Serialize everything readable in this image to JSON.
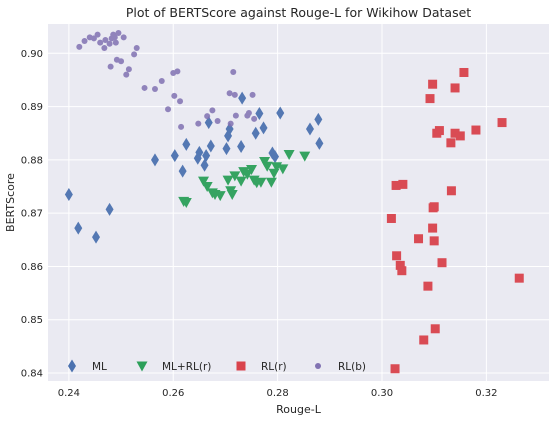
{
  "chart_data": {
    "type": "scatter",
    "title": "Plot of BERTScore against Rouge-L for Wikihow Dataset",
    "xlabel": "Rouge-L",
    "ylabel": "BERTScore",
    "xlim": [
      0.236,
      0.332
    ],
    "ylim": [
      0.8385,
      0.9055
    ],
    "xticks": [
      0.24,
      0.26,
      0.28,
      0.3,
      0.32
    ],
    "xtick_labels": [
      "0.24",
      "0.26",
      "0.28",
      "0.30",
      "0.32"
    ],
    "yticks": [
      0.84,
      0.85,
      0.86,
      0.87,
      0.88,
      0.89,
      0.9
    ],
    "ytick_labels": [
      "0.84",
      "0.85",
      "0.86",
      "0.87",
      "0.88",
      "0.89",
      "0.90"
    ],
    "grid": true,
    "legend_position": "bottom-left",
    "series": [
      {
        "name": "ML",
        "marker": "diamond",
        "color": "#4c72b0",
        "points": [
          [
            0.24,
            0.8735
          ],
          [
            0.2418,
            0.8672
          ],
          [
            0.2452,
            0.8655
          ],
          [
            0.2478,
            0.8707
          ],
          [
            0.2565,
            0.88
          ],
          [
            0.2603,
            0.8808
          ],
          [
            0.2618,
            0.8779
          ],
          [
            0.2625,
            0.8829
          ],
          [
            0.2647,
            0.8803
          ],
          [
            0.265,
            0.8814
          ],
          [
            0.266,
            0.879
          ],
          [
            0.2663,
            0.8808
          ],
          [
            0.2668,
            0.887
          ],
          [
            0.2672,
            0.8826
          ],
          [
            0.2702,
            0.8821
          ],
          [
            0.2705,
            0.8845
          ],
          [
            0.2708,
            0.8858
          ],
          [
            0.273,
            0.8825
          ],
          [
            0.2732,
            0.8916
          ],
          [
            0.2758,
            0.885
          ],
          [
            0.2765,
            0.8887
          ],
          [
            0.2773,
            0.886
          ],
          [
            0.279,
            0.8813
          ],
          [
            0.2795,
            0.8806
          ],
          [
            0.2805,
            0.8888
          ],
          [
            0.2862,
            0.8858
          ],
          [
            0.2878,
            0.8876
          ],
          [
            0.288,
            0.8831
          ]
        ]
      },
      {
        "name": "ML+RL(r)",
        "marker": "triangle-down",
        "color": "#2ca05a",
        "points": [
          [
            0.262,
            0.8722
          ],
          [
            0.2625,
            0.872
          ],
          [
            0.2658,
            0.876
          ],
          [
            0.2665,
            0.875
          ],
          [
            0.2675,
            0.8738
          ],
          [
            0.268,
            0.8735
          ],
          [
            0.269,
            0.8733
          ],
          [
            0.2705,
            0.8762
          ],
          [
            0.271,
            0.8742
          ],
          [
            0.2713,
            0.8735
          ],
          [
            0.2718,
            0.877
          ],
          [
            0.273,
            0.876
          ],
          [
            0.2735,
            0.8778
          ],
          [
            0.2742,
            0.8773
          ],
          [
            0.275,
            0.8782
          ],
          [
            0.2755,
            0.8762
          ],
          [
            0.276,
            0.8757
          ],
          [
            0.2768,
            0.8758
          ],
          [
            0.2775,
            0.8797
          ],
          [
            0.278,
            0.8788
          ],
          [
            0.2788,
            0.8758
          ],
          [
            0.2793,
            0.8775
          ],
          [
            0.2798,
            0.8787
          ],
          [
            0.281,
            0.8783
          ],
          [
            0.2822,
            0.881
          ],
          [
            0.2852,
            0.8807
          ]
        ]
      },
      {
        "name": "RL(r)",
        "marker": "square",
        "color": "#d9434c",
        "points": [
          [
            0.3018,
            0.869
          ],
          [
            0.3025,
            0.8408
          ],
          [
            0.3027,
            0.8752
          ],
          [
            0.3028,
            0.862
          ],
          [
            0.3035,
            0.8602
          ],
          [
            0.3038,
            0.8592
          ],
          [
            0.304,
            0.8754
          ],
          [
            0.307,
            0.8652
          ],
          [
            0.308,
            0.8462
          ],
          [
            0.3088,
            0.8563
          ],
          [
            0.3092,
            0.8915
          ],
          [
            0.3097,
            0.8942
          ],
          [
            0.3097,
            0.8672
          ],
          [
            0.3098,
            0.871
          ],
          [
            0.31,
            0.8712
          ],
          [
            0.31,
            0.8648
          ],
          [
            0.3102,
            0.8483
          ],
          [
            0.3105,
            0.885
          ],
          [
            0.311,
            0.8855
          ],
          [
            0.3115,
            0.8607
          ],
          [
            0.3132,
            0.8832
          ],
          [
            0.3133,
            0.8742
          ],
          [
            0.314,
            0.8935
          ],
          [
            0.314,
            0.885
          ],
          [
            0.315,
            0.8845
          ],
          [
            0.3157,
            0.8964
          ],
          [
            0.318,
            0.8856
          ],
          [
            0.323,
            0.887
          ],
          [
            0.3263,
            0.8578
          ]
        ]
      },
      {
        "name": "RL(b)",
        "marker": "circle",
        "color": "#8172b2",
        "points": [
          [
            0.242,
            0.9012
          ],
          [
            0.243,
            0.9023
          ],
          [
            0.244,
            0.903
          ],
          [
            0.2448,
            0.9028
          ],
          [
            0.2455,
            0.9035
          ],
          [
            0.246,
            0.902
          ],
          [
            0.2468,
            0.901
          ],
          [
            0.247,
            0.9025
          ],
          [
            0.2478,
            0.9018
          ],
          [
            0.248,
            0.8975
          ],
          [
            0.2482,
            0.9028
          ],
          [
            0.2485,
            0.9035
          ],
          [
            0.2488,
            0.903
          ],
          [
            0.249,
            0.902
          ],
          [
            0.2492,
            0.8988
          ],
          [
            0.2495,
            0.9038
          ],
          [
            0.25,
            0.8985
          ],
          [
            0.2505,
            0.903
          ],
          [
            0.251,
            0.896
          ],
          [
            0.2515,
            0.897
          ],
          [
            0.2525,
            0.8998
          ],
          [
            0.253,
            0.901
          ],
          [
            0.2545,
            0.8935
          ],
          [
            0.2565,
            0.8933
          ],
          [
            0.2578,
            0.8948
          ],
          [
            0.259,
            0.8895
          ],
          [
            0.26,
            0.8963
          ],
          [
            0.2602,
            0.892
          ],
          [
            0.2608,
            0.8966
          ],
          [
            0.2613,
            0.891
          ],
          [
            0.2615,
            0.8862
          ],
          [
            0.2648,
            0.8868
          ],
          [
            0.2665,
            0.8882
          ],
          [
            0.2675,
            0.8893
          ],
          [
            0.2685,
            0.8873
          ],
          [
            0.2708,
            0.8925
          ],
          [
            0.271,
            0.8868
          ],
          [
            0.2715,
            0.8965
          ],
          [
            0.2718,
            0.8922
          ],
          [
            0.272,
            0.8883
          ],
          [
            0.2742,
            0.8883
          ],
          [
            0.2745,
            0.8888
          ],
          [
            0.2752,
            0.8922
          ],
          [
            0.2755,
            0.8877
          ]
        ]
      }
    ]
  }
}
